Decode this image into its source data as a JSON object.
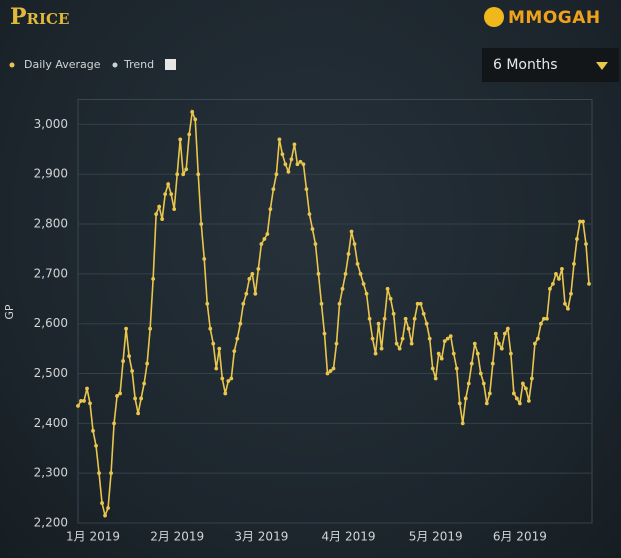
{
  "header": {
    "title": "Price",
    "logo": "MMOGAH",
    "range": "6 Months"
  },
  "chart_data": {
    "type": "line",
    "y_label": "GP",
    "trend_label": "Trend",
    "grid": true,
    "ylim": [
      2200,
      3050
    ],
    "yticks": [
      {
        "value": 2200,
        "label": "2,200"
      },
      {
        "value": 2300,
        "label": "2,300"
      },
      {
        "value": 2400,
        "label": "2,400"
      },
      {
        "value": 2500,
        "label": "2,500"
      },
      {
        "value": 2600,
        "label": "2,600"
      },
      {
        "value": 2700,
        "label": "2,700"
      },
      {
        "value": 2800,
        "label": "2,800"
      },
      {
        "value": 2900,
        "label": "2,900"
      },
      {
        "value": 3000,
        "label": "3,000"
      }
    ],
    "categories": [
      null,
      null,
      null,
      null,
      null,
      "1月 2019",
      null,
      null,
      null,
      null,
      null,
      null,
      null,
      null,
      null,
      null,
      null,
      null,
      null,
      null,
      null,
      null,
      null,
      null,
      null,
      null,
      null,
      null,
      null,
      null,
      null,
      null,
      null,
      "2月 2019",
      null,
      null,
      null,
      null,
      null,
      null,
      null,
      null,
      null,
      null,
      null,
      null,
      null,
      null,
      null,
      null,
      null,
      null,
      null,
      null,
      null,
      null,
      null,
      null,
      null,
      null,
      null,
      "3月 2019",
      null,
      null,
      null,
      null,
      null,
      null,
      null,
      null,
      null,
      null,
      null,
      null,
      null,
      null,
      null,
      null,
      null,
      null,
      null,
      null,
      null,
      null,
      null,
      null,
      null,
      null,
      null,
      null,
      "4月 2019",
      null,
      null,
      null,
      null,
      null,
      null,
      null,
      null,
      null,
      null,
      null,
      null,
      null,
      null,
      null,
      null,
      null,
      null,
      null,
      null,
      null,
      null,
      null,
      null,
      null,
      null,
      null,
      null,
      "5月 2019",
      null,
      null,
      null,
      null,
      null,
      null,
      null,
      null,
      null,
      null,
      null,
      null,
      null,
      null,
      null,
      null,
      null,
      null,
      null,
      null,
      null,
      null,
      null,
      null,
      null,
      null,
      null,
      "6月 2019",
      null,
      null,
      null,
      null,
      null,
      null,
      null,
      null,
      null,
      null,
      null,
      null,
      null,
      null,
      null,
      null,
      null,
      null,
      null,
      null,
      null,
      null,
      null
    ],
    "series": [
      {
        "name": "Daily Average",
        "color": "#e9c64c",
        "values": [
          2435,
          2445,
          2445,
          2470,
          2440,
          2385,
          2355,
          2300,
          2240,
          2215,
          2230,
          2300,
          2400,
          2455,
          2460,
          2525,
          2590,
          2535,
          2505,
          2450,
          2420,
          2450,
          2480,
          2520,
          2590,
          2690,
          2820,
          2835,
          2810,
          2860,
          2880,
          2860,
          2830,
          2900,
          2970,
          2900,
          2910,
          2980,
          3025,
          3010,
          2900,
          2800,
          2730,
          2640,
          2590,
          2560,
          2510,
          2550,
          2490,
          2460,
          2485,
          2490,
          2545,
          2570,
          2600,
          2640,
          2660,
          2690,
          2700,
          2660,
          2710,
          2760,
          2770,
          2780,
          2830,
          2870,
          2900,
          2970,
          2940,
          2920,
          2905,
          2930,
          2960,
          2920,
          2925,
          2920,
          2870,
          2820,
          2790,
          2760,
          2700,
          2640,
          2580,
          2500,
          2505,
          2510,
          2560,
          2640,
          2670,
          2700,
          2740,
          2785,
          2760,
          2720,
          2700,
          2680,
          2660,
          2610,
          2570,
          2540,
          2600,
          2550,
          2610,
          2670,
          2650,
          2620,
          2560,
          2550,
          2570,
          2610,
          2590,
          2560,
          2610,
          2640,
          2640,
          2620,
          2600,
          2570,
          2510,
          2490,
          2540,
          2530,
          2565,
          2570,
          2575,
          2540,
          2510,
          2440,
          2400,
          2450,
          2480,
          2520,
          2560,
          2540,
          2500,
          2480,
          2440,
          2460,
          2520,
          2580,
          2560,
          2550,
          2580,
          2590,
          2540,
          2460,
          2450,
          2440,
          2480,
          2470,
          2445,
          2490,
          2560,
          2570,
          2600,
          2610,
          2610,
          2670,
          2680,
          2700,
          2690,
          2710,
          2640,
          2630,
          2660,
          2720,
          2770,
          2805,
          2805,
          2760,
          2680
        ]
      }
    ]
  }
}
